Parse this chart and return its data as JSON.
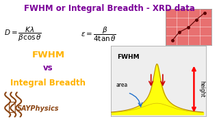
{
  "title": "FWHM or Integral Breadth - XRD data",
  "title_color": "#7B0099",
  "title_fontsize": 8.5,
  "title_fontweight": "bold",
  "bg_color": "#FFFFFF",
  "text_fwhm": "FWHM",
  "text_vs": "vs",
  "text_ib": "Integral Breadth",
  "fwhm_text_color": "#FFB300",
  "vs_color": "#7B0099",
  "say_physics_color": "#8B4513",
  "say_physics_text": "SAYPhysics",
  "peak_fill_color": "#FFFF00",
  "peak_edge_color": "#B8860B",
  "peak_bg_color": "#EEEEEE",
  "arrow_color": "#FF0000",
  "area_arrow_color": "#1E6FCC",
  "fwhm_arrow_color": "#CC0000",
  "height_text_color": "#000000",
  "diagram_border_color": "#AAAAAA",
  "formula_color": "#000000"
}
